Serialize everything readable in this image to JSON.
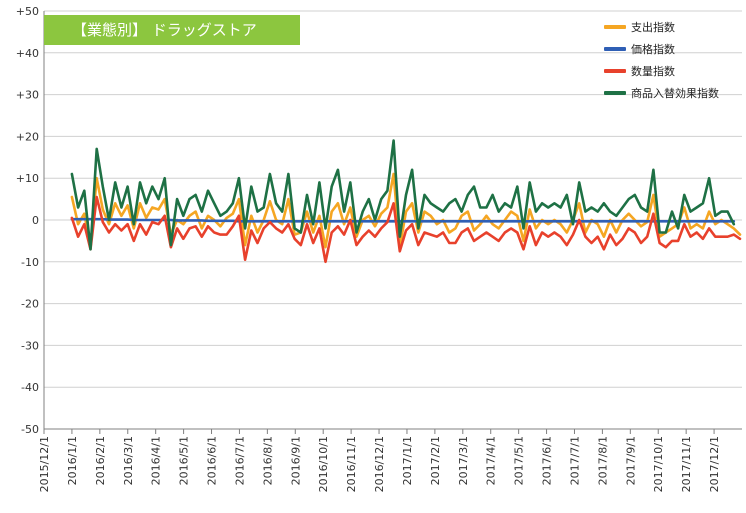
{
  "chart_data": {
    "type": "line",
    "title": "【業態別】 ドラッグストア",
    "ylim": [
      -50,
      50
    ],
    "y_ticks": [
      "+50",
      "+40",
      "+30",
      "+20",
      "+10",
      "0",
      "-10",
      "-20",
      "-30",
      "-40",
      "-50"
    ],
    "y_tick_values": [
      50,
      40,
      30,
      20,
      10,
      0,
      -10,
      -20,
      -30,
      -40,
      -50
    ],
    "x_tick_labels": [
      "2015/12/1",
      "2016/1/1",
      "2016/2/1",
      "2016/3/1",
      "2016/4/1",
      "2016/5/1",
      "2016/6/1",
      "2016/7/1",
      "2016/8/1",
      "2016/9/1",
      "2016/10/1",
      "2016/11/1",
      "2016/12/1",
      "2017/1/1",
      "2017/2/1",
      "2017/3/1",
      "2017/4/1",
      "2017/5/1",
      "2017/6/1",
      "2017/7/1",
      "2017/8/1",
      "2017/9/1",
      "2017/10/1",
      "2017/11/1",
      "2017/12/1"
    ],
    "grid": true,
    "legend_position": "top-right",
    "series": [
      {
        "name": "支出指数",
        "color": "#f5a623",
        "values": [
          5.5,
          -1,
          1.5,
          -6.5,
          10,
          2.5,
          -1,
          4,
          1,
          3.5,
          -2,
          4,
          0.5,
          3,
          2.5,
          5,
          -3.5,
          0,
          -1,
          1,
          2,
          -2,
          1,
          0,
          -1.5,
          0.5,
          1.5,
          5,
          -6,
          1,
          -3,
          0,
          4.5,
          0,
          -1,
          5,
          -3.5,
          -3,
          2,
          -3,
          1,
          -6.5,
          2,
          4,
          -1,
          3,
          -4,
          0,
          1,
          -1.5,
          1.5,
          3,
          11,
          -6.5,
          2,
          4,
          -3,
          2,
          1,
          -1,
          0,
          -3,
          -2,
          1,
          2,
          -2.5,
          -1,
          1,
          -1,
          -2,
          0,
          2,
          1,
          -5,
          2.5,
          -2,
          0,
          -1,
          0,
          -1,
          -3,
          0,
          4,
          -3,
          0,
          -1,
          -4,
          0,
          -3,
          0,
          1.5,
          0,
          -1.5,
          -0.5,
          6,
          -4,
          -3,
          -2,
          -1,
          3,
          -2,
          -1,
          -2,
          2,
          -1,
          0,
          -1,
          -2,
          -3.5
        ]
      },
      {
        "name": "価格指数",
        "color": "#2f5fb5",
        "values": [
          0.2,
          0.2,
          0.2,
          0.2,
          0.2,
          0.2,
          0.1,
          0.1,
          0.1,
          0.1,
          0,
          0,
          0,
          0,
          0,
          0,
          0,
          -0.1,
          -0.1,
          -0.1,
          -0.1,
          -0.1,
          -0.2,
          -0.2,
          -0.2,
          -0.2,
          -0.2,
          -0.3,
          -0.3,
          -0.3,
          -0.3,
          -0.3,
          -0.3,
          -0.3,
          -0.3,
          -0.3,
          -0.3,
          -0.3,
          -0.3,
          -0.3,
          -0.3,
          -0.3,
          -0.3,
          -0.3,
          -0.3,
          -0.3,
          -0.3,
          -0.3,
          -0.3,
          -0.3,
          -0.3,
          -0.3,
          -0.3,
          -0.3,
          -0.3,
          -0.3,
          -0.3,
          -0.3,
          -0.3,
          -0.3,
          -0.3,
          -0.3,
          -0.3,
          -0.3,
          -0.3,
          -0.3,
          -0.3,
          -0.3,
          -0.3,
          -0.3,
          -0.3,
          -0.3,
          -0.3,
          -0.3,
          -0.3,
          -0.3,
          -0.3,
          -0.3,
          -0.3,
          -0.3,
          -0.3,
          -0.3,
          -0.3,
          -0.3,
          -0.3,
          -0.3,
          -0.3,
          -0.3,
          -0.3,
          -0.3,
          -0.3,
          -0.3,
          -0.3,
          -0.3,
          -0.3,
          -0.3,
          -0.3,
          -0.3,
          -0.3,
          -0.3,
          -0.3,
          -0.3,
          -0.3,
          -0.3,
          -0.3,
          -0.3,
          -0.3,
          -0.3
        ]
      },
      {
        "name": "数量指数",
        "color": "#e8412c",
        "values": [
          0.5,
          -4,
          -1,
          -7,
          5.5,
          -0.5,
          -3,
          -1,
          -2.5,
          -1,
          -5,
          -1,
          -3.5,
          -0.5,
          -1,
          1,
          -6.5,
          -2,
          -4.5,
          -2,
          -1.5,
          -4,
          -1.5,
          -3,
          -3.5,
          -3.5,
          -1.5,
          1,
          -9.5,
          -2.5,
          -5.5,
          -2,
          -0.5,
          -2,
          -3,
          -1,
          -4.5,
          -6,
          -1,
          -5.5,
          -2,
          -10,
          -3,
          -1.5,
          -3.5,
          0,
          -6,
          -4,
          -2.5,
          -4,
          -2,
          -0.5,
          4,
          -7.5,
          -2.5,
          -1,
          -6,
          -3,
          -3.5,
          -4,
          -3,
          -5.5,
          -5.5,
          -3,
          -2,
          -5,
          -4,
          -3,
          -4,
          -5,
          -3,
          -2,
          -3,
          -7,
          -1.5,
          -6,
          -3,
          -4,
          -3,
          -4,
          -6,
          -3.5,
          0,
          -4,
          -5.5,
          -4,
          -7,
          -3.5,
          -6,
          -4.5,
          -2,
          -3,
          -5.5,
          -4,
          1.5,
          -5.5,
          -6.5,
          -5,
          -5,
          -1,
          -4,
          -3,
          -4.5,
          -2,
          -4,
          -4,
          -4,
          -3.5,
          -4.5
        ]
      },
      {
        "name": "商品入替効果指数",
        "color": "#1e7145",
        "values": [
          11,
          3,
          7,
          -7,
          17,
          8,
          0,
          9,
          3,
          8,
          -1,
          9,
          4,
          8,
          5,
          10,
          -6,
          5,
          1,
          5,
          6,
          2,
          7,
          4,
          1,
          2,
          4,
          10,
          -2,
          8,
          2,
          3,
          11,
          4,
          2,
          11,
          -2,
          -3,
          6,
          -1,
          9,
          -2,
          8,
          12,
          2,
          9,
          -3,
          2,
          5,
          0,
          5,
          7,
          19,
          -4,
          6,
          12,
          -2,
          6,
          4,
          3,
          2,
          4,
          5,
          2,
          6,
          8,
          3,
          3,
          6,
          2,
          4,
          3,
          8,
          -2,
          9,
          2,
          4,
          3,
          4,
          3,
          6,
          -1,
          9,
          2,
          3,
          2,
          4,
          2,
          1,
          3,
          5,
          6,
          3,
          2,
          12,
          -3,
          -3,
          2,
          -2,
          6,
          2,
          3,
          4,
          10,
          1,
          2,
          2,
          -1
        ]
      }
    ]
  }
}
